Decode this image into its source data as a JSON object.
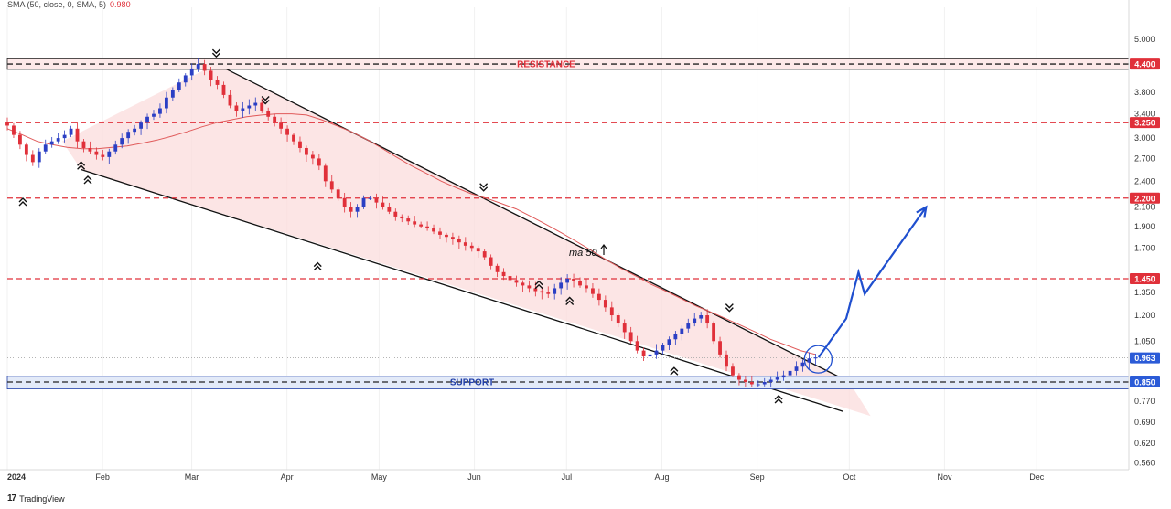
{
  "indicator": {
    "label": "SMA (50, close, 0, SMA, 5)",
    "value": "0.980"
  },
  "branding": "TradingView",
  "colors": {
    "resistance": "#e0303a",
    "support_band": "#e3eaf8",
    "support_line": "#2240a8",
    "wedge_fill": "#fbdcdc",
    "candle_up": "#2b3fc4",
    "candle_down": "#e0303a",
    "ma_line": "#e05a5a",
    "projection": "#1f4fcf",
    "current_price_bg": "#2b5bd7"
  },
  "chart_data": {
    "type": "candlestick",
    "title": "",
    "y_scale": "log",
    "ylim": [
      0.54,
      5.9
    ],
    "x_tick_labels": [
      "2024",
      "Feb",
      "Mar",
      "Apr",
      "May",
      "Jun",
      "Jul",
      "Aug",
      "Sep",
      "Oct",
      "Nov",
      "Dec"
    ],
    "y_tick_labels": [
      "5.000",
      "3.800",
      "3.400",
      "3.000",
      "2.700",
      "2.400",
      "2.100",
      "1.900",
      "1.700",
      "1.350",
      "1.200",
      "1.050",
      "0.770",
      "0.690",
      "0.620",
      "0.560"
    ],
    "price_labels": [
      {
        "text": "4.400",
        "value": 4.4,
        "color": "#e0303a"
      },
      {
        "text": "3.250",
        "value": 3.25,
        "color": "#e0303a"
      },
      {
        "text": "2.200",
        "value": 2.2,
        "color": "#e0303a"
      },
      {
        "text": "1.450",
        "value": 1.45,
        "color": "#e0303a"
      },
      {
        "text": "0.963",
        "value": 0.963,
        "color": "#2b5bd7"
      },
      {
        "text": "0.850",
        "value": 0.85,
        "color": "#2b5bd7"
      }
    ],
    "horizontal_levels": [
      {
        "value": 4.4,
        "label": "RESISTANCE",
        "band": [
          4.28,
          4.52
        ]
      },
      {
        "value": 3.25
      },
      {
        "value": 2.2
      },
      {
        "value": 1.45
      },
      {
        "value": 0.85,
        "label": "SUPPORT",
        "band": [
          0.82,
          0.875
        ]
      }
    ],
    "annotation": "ma 50",
    "wedge": {
      "upper": [
        [
          "2024-03-09",
          4.4
        ],
        [
          "2024-10-01",
          0.85
        ]
      ],
      "lower": [
        [
          "2024-01-25",
          2.55
        ],
        [
          "2024-09-29",
          0.73
        ]
      ]
    },
    "projection": [
      [
        "2024-09-21",
        0.965
      ],
      [
        "2024-09-30",
        1.18
      ],
      [
        "2024-10-04",
        1.5
      ],
      [
        "2024-10-06",
        1.34
      ],
      [
        "2024-10-26",
        2.1
      ]
    ],
    "anchor_points": [
      [
        "2024-01-25",
        2.78
      ],
      [
        "2024-03-09",
        4.4
      ],
      [
        "2024-03-15",
        3.95
      ],
      [
        "2024-03-25",
        3.45
      ],
      [
        "2024-04-05",
        3.0
      ],
      [
        "2024-04-11",
        1.65
      ],
      [
        "2024-04-20",
        2.4
      ],
      [
        "2024-05-10",
        2.15
      ],
      [
        "2024-06-01",
        2.05
      ],
      [
        "2024-06-04",
        2.2
      ],
      [
        "2024-06-10",
        1.95
      ],
      [
        "2024-06-22",
        1.5
      ],
      [
        "2024-07-02",
        1.38
      ],
      [
        "2024-07-20",
        1.45
      ],
      [
        "2024-08-05",
        0.96
      ],
      [
        "2024-08-15",
        1.1
      ],
      [
        "2024-08-23",
        1.18
      ],
      [
        "2024-08-28",
        1.0
      ],
      [
        "2024-09-08",
        0.83
      ],
      [
        "2024-09-20",
        0.965
      ]
    ],
    "series": [
      {
        "type": "candles",
        "x_start": "2024-01-01",
        "x_end": "2024-09-20",
        "close": [
          3.2,
          3.05,
          2.9,
          2.75,
          2.65,
          2.8,
          2.9,
          2.95,
          3.0,
          3.05,
          3.15,
          2.95,
          2.85,
          2.8,
          2.75,
          2.72,
          2.8,
          2.9,
          3.0,
          3.1,
          3.15,
          3.25,
          3.35,
          3.4,
          3.5,
          3.7,
          3.85,
          4.0,
          4.15,
          4.3,
          4.4,
          4.25,
          4.05,
          3.95,
          3.75,
          3.55,
          3.45,
          3.5,
          3.55,
          3.6,
          3.45,
          3.35,
          3.25,
          3.15,
          3.05,
          2.95,
          2.85,
          2.75,
          2.7,
          2.6,
          2.4,
          2.3,
          2.2,
          2.1,
          2.05,
          2.1,
          2.2,
          2.2,
          2.15,
          2.1,
          2.05,
          2.0,
          1.98,
          1.95,
          1.92,
          1.9,
          1.88,
          1.85,
          1.82,
          1.8,
          1.78,
          1.75,
          1.72,
          1.7,
          1.67,
          1.62,
          1.55,
          1.5,
          1.47,
          1.44,
          1.42,
          1.4,
          1.38,
          1.36,
          1.35,
          1.34,
          1.38,
          1.42,
          1.45,
          1.43,
          1.4,
          1.38,
          1.34,
          1.3,
          1.25,
          1.2,
          1.15,
          1.1,
          1.05,
          1.0,
          0.97,
          0.98,
          1.0,
          1.03,
          1.06,
          1.09,
          1.12,
          1.15,
          1.18,
          1.2,
          1.15,
          1.05,
          0.98,
          0.92,
          0.88,
          0.86,
          0.85,
          0.84,
          0.84,
          0.85,
          0.86,
          0.87,
          0.88,
          0.9,
          0.92,
          0.94,
          0.96,
          0.965
        ]
      },
      {
        "type": "line",
        "name": "ma 50",
        "x_start": "2024-01-01",
        "x_end": "2024-09-20",
        "values": [
          3.15,
          3.05,
          2.95,
          2.9,
          2.86,
          2.84,
          2.84,
          2.86,
          2.88,
          2.92,
          2.97,
          3.03,
          3.1,
          3.18,
          3.25,
          3.3,
          3.35,
          3.38,
          3.4,
          3.4,
          3.38,
          3.3,
          3.2,
          3.1,
          2.98,
          2.85,
          2.72,
          2.6,
          2.5,
          2.4,
          2.32,
          2.25,
          2.2,
          2.14,
          2.08,
          2.0,
          1.92,
          1.84,
          1.76,
          1.68,
          1.6,
          1.53,
          1.47,
          1.41,
          1.36,
          1.31,
          1.26,
          1.22,
          1.18,
          1.14,
          1.1,
          1.06,
          1.03,
          1.0,
          0.98
        ]
      }
    ]
  }
}
